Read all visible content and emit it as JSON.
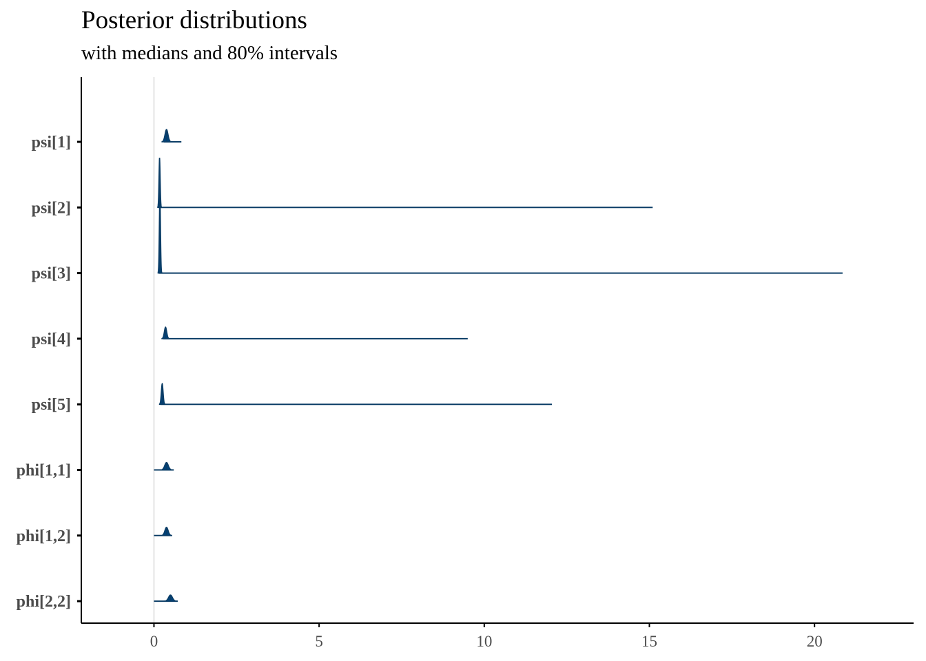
{
  "title": "Posterior distributions",
  "subtitle": "with medians and 80% intervals",
  "colors": {
    "density_fill": "#00427a",
    "density_line": "#0b3d66",
    "interval_line": "#0b3d66",
    "zero_line": "#d9d9d9",
    "axis": "#000000",
    "tick_label": "#4d4d4d"
  },
  "chart_data": {
    "type": "ridgeline",
    "title": "Posterior distributions",
    "subtitle": "with medians and 80% intervals",
    "xlabel": "",
    "ylabel": "",
    "xlim": [
      -2.2,
      23.0
    ],
    "xticks": [
      0,
      5,
      10,
      15,
      20
    ],
    "vline_at": 0,
    "grid": false,
    "series": [
      {
        "name": "psi[1]",
        "median": 0.38,
        "interval": [
          0.3,
          0.83
        ],
        "peak_width": 0.1,
        "peak_height": 0.3
      },
      {
        "name": "psi[2]",
        "median": 0.17,
        "interval": [
          0.14,
          15.1
        ],
        "peak_width": 0.04,
        "peak_height": 1.2
      },
      {
        "name": "psi[3]",
        "median": 0.18,
        "interval": [
          0.15,
          20.85
        ],
        "peak_width": 0.04,
        "peak_height": 1.9
      },
      {
        "name": "psi[4]",
        "median": 0.35,
        "interval": [
          0.28,
          9.5
        ],
        "peak_width": 0.08,
        "peak_height": 0.28
      },
      {
        "name": "psi[5]",
        "median": 0.25,
        "interval": [
          0.19,
          12.05
        ],
        "peak_width": 0.06,
        "peak_height": 0.5
      },
      {
        "name": "phi[1,1]",
        "median": 0.38,
        "interval": [
          0.0,
          0.6
        ],
        "peak_width": 0.12,
        "peak_height": 0.18
      },
      {
        "name": "phi[1,2]",
        "median": 0.38,
        "interval": [
          0.0,
          0.55
        ],
        "peak_width": 0.11,
        "peak_height": 0.2
      },
      {
        "name": "phi[2,2]",
        "median": 0.5,
        "interval": [
          0.0,
          0.72
        ],
        "peak_width": 0.13,
        "peak_height": 0.15
      }
    ]
  }
}
